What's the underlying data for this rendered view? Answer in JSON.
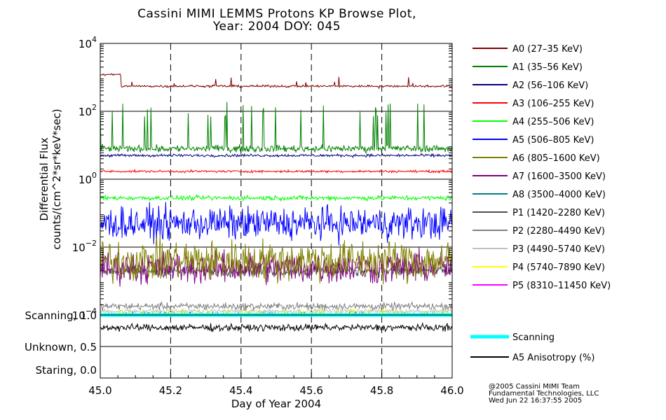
{
  "chart_data": {
    "type": "line",
    "title": "Cassini MIMI LEMMS Protons KP Browse Plot,",
    "subtitle": "Year: 2004 DOY: 045",
    "xlabel": "Day of Year 2004",
    "ylabel": "Differential Flux",
    "ylabel2": "counts/(cm^2*sr*keV*sec)",
    "xlim": [
      45.0,
      46.0
    ],
    "xticks": [
      "45.0",
      "45.2",
      "45.4",
      "45.6",
      "45.8",
      "46.0"
    ],
    "flux_panel": {
      "yscale": "log",
      "ylim": [
        0.0001,
        10000
      ],
      "yticks": [
        {
          "base": "10",
          "exp": "4",
          "value": 10000
        },
        {
          "base": "10",
          "exp": "2",
          "value": 100
        },
        {
          "base": "10",
          "exp": "0",
          "value": 1
        },
        {
          "base": "10",
          "exp": "−2",
          "value": 0.01
        },
        {
          "base": "10",
          "exp": "−4",
          "value": 0.0001
        }
      ]
    },
    "state_panel": {
      "ylim": [
        0.0,
        1.0
      ],
      "yticks": [
        "Scanning, 1.0",
        "Unknown, 0.5",
        "Staring, 0.0"
      ]
    },
    "series": [
      {
        "name": "A0 (27–35 KeV)",
        "color": "#800000",
        "base": 550,
        "early": 1200,
        "spread": 0.05,
        "spikeProb": 0.015,
        "spikeMax": 2
      },
      {
        "name": "A1 (35–56 KeV)",
        "color": "#008000",
        "base": 8,
        "early": 8,
        "spread": 0.15,
        "spikeProb": 0.05,
        "spikeMax": 20
      },
      {
        "name": "A2 (56–106 KeV)",
        "color": "#000080",
        "base": 5,
        "early": 5,
        "spread": 0.06,
        "spikeProb": 0.0,
        "spikeMax": 1
      },
      {
        "name": "A3 (106–255 KeV)",
        "color": "#ff0000",
        "base": 1.7,
        "early": 1.7,
        "spread": 0.05,
        "spikeProb": 0.0,
        "spikeMax": 1
      },
      {
        "name": "A4 (255–506 KeV)",
        "color": "#00ff00",
        "base": 0.28,
        "early": 0.28,
        "spread": 0.1,
        "spikeProb": 0.0,
        "spikeMax": 1
      },
      {
        "name": "A5 (506–805 KeV)",
        "color": "#0000ff",
        "base": 0.05,
        "early": 0.05,
        "spread": 0.7,
        "spikeProb": 0.0,
        "spikeMax": 1
      },
      {
        "name": "A6 (805–1600 KeV)",
        "color": "#808000",
        "base": 0.004,
        "early": 0.004,
        "spread": 0.9,
        "spikeProb": 0.0,
        "spikeMax": 1
      },
      {
        "name": "A7 (1600–3500 KeV)",
        "color": "#800080",
        "base": 0.0025,
        "early": 0.0025,
        "spread": 0.7,
        "spikeProb": 0.0,
        "spikeMax": 1
      },
      {
        "name": "A8 (3500–4000 KeV)",
        "color": "#008080",
        "base": 0.0001,
        "early": 0.0001,
        "spread": 0.1,
        "spikeProb": 0.0,
        "spikeMax": 1
      },
      {
        "name": "P1 (1420–2280 KeV)",
        "color": "#505050",
        "base": 0.002,
        "early": 0.002,
        "spread": 0.25,
        "spikeProb": 0.0,
        "spikeMax": 1
      },
      {
        "name": "P2 (2280–4490 KeV)",
        "color": "#808080",
        "base": 0.00018,
        "early": 0.00018,
        "spread": 0.15,
        "spikeProb": 0.0,
        "spikeMax": 1
      },
      {
        "name": "P3 (4490–5740 KeV)",
        "color": "#c0c0c0",
        "base": 0.00013,
        "early": 0.00013,
        "spread": 0.1,
        "spikeProb": 0.0,
        "spikeMax": 1
      },
      {
        "name": "P4 (5740–7890 KeV)",
        "color": "#ffff00",
        "base": 0.0001,
        "early": 0.0001,
        "spread": 0.25,
        "spikeProb": 0.0,
        "spikeMax": 1
      },
      {
        "name": "P5 (8310–11450 KeV)",
        "color": "#ff00ff",
        "base": 0.0001,
        "early": 0.0001,
        "spread": 0.05,
        "spikeProb": 0.0,
        "spikeMax": 1
      }
    ],
    "scanning": {
      "name": "Scanning",
      "color": "#00ffff",
      "value": 1.0
    },
    "anisotropy": {
      "name": "A5 Anisotropy (%)",
      "color": "#000000",
      "base": 0.8,
      "spread": 0.08
    },
    "credits": [
      "@2005 Cassini MIMI Team",
      "Fundamental Technologies, LLC",
      "Wed Jun 22 16:37:55 2005"
    ]
  }
}
